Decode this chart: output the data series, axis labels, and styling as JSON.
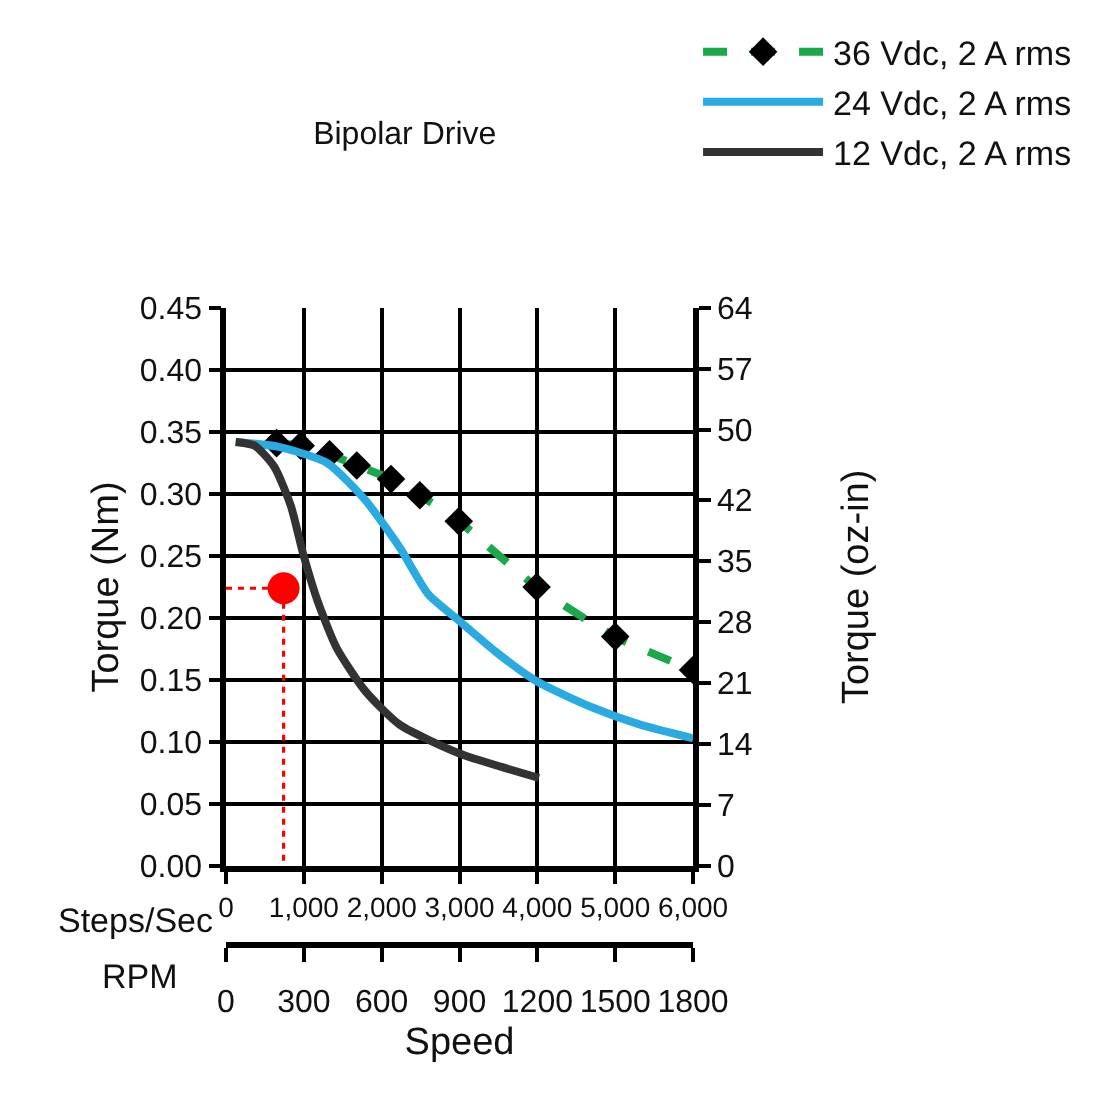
{
  "chart_data": {
    "type": "line",
    "title": "Bipolar Drive",
    "xlabel": "Speed",
    "ylabel": "Torque (Nm)",
    "y2label": "Torque (oz-in)",
    "annotations": [
      "Steps/Sec",
      "RPM"
    ],
    "xlim": [
      0,
      6000
    ],
    "xticks": [
      0,
      {
        "value": 1000,
        "label": "1,000"
      },
      {
        "value": 2000,
        "label": "2,000"
      },
      {
        "value": 3000,
        "label": "3,000"
      },
      {
        "value": 4000,
        "label": "4,000"
      },
      {
        "value": 5000,
        "label": "5,000"
      },
      {
        "value": 6000,
        "label": "6,000"
      }
    ],
    "x2lim": [
      0,
      1800
    ],
    "x2ticks": [
      0,
      300,
      600,
      900,
      1200,
      1500,
      1800
    ],
    "ylim": [
      0,
      0.45
    ],
    "yticks": [
      {
        "value": 0,
        "label": "0.00"
      },
      0.05,
      {
        "value": 0.1,
        "label": "0.10"
      },
      0.15,
      {
        "value": 0.2,
        "label": "0.20"
      },
      0.25,
      {
        "value": 0.3,
        "label": "0.30"
      },
      0.35,
      {
        "value": 0.4,
        "label": "0.40"
      },
      0.45
    ],
    "y2lim": [
      0,
      64
    ],
    "y2ticks": [
      0,
      7,
      14,
      21,
      28,
      35,
      42,
      50,
      57,
      64
    ],
    "grid": true,
    "legend": "top right",
    "series": [
      {
        "name": "36 Vdc, 2 A rms",
        "color": "#1aa84a",
        "marker": "diamond",
        "line_style": "dashed",
        "x": [
          650,
          960,
          1330,
          1680,
          2120,
          2490,
          2990,
          3990,
          5000,
          6000
        ],
        "values": [
          0.341,
          0.339,
          0.332,
          0.323,
          0.312,
          0.299,
          0.278,
          0.225,
          0.185,
          0.158
        ]
      },
      {
        "name": "24 Vdc, 2 A rms",
        "color": "#29abe2",
        "marker": "none",
        "line_style": "solid",
        "x": [
          124,
          680,
          1300,
          1790,
          2230,
          2600,
          2990,
          3460,
          3990,
          4700,
          5320,
          6000
        ],
        "values": [
          0.342,
          0.338,
          0.325,
          0.295,
          0.257,
          0.219,
          0.198,
          0.173,
          0.149,
          0.128,
          0.114,
          0.103
        ]
      },
      {
        "name": "12 Vdc, 2 A rms",
        "color": "#333333",
        "marker": "none",
        "line_style": "solid",
        "x": [
          124,
          370,
          620,
          835,
          990,
          1175,
          1420,
          1790,
          2230,
          2990,
          4020
        ],
        "values": [
          0.342,
          0.339,
          0.322,
          0.29,
          0.252,
          0.214,
          0.176,
          0.141,
          0.114,
          0.091,
          0.071
        ]
      },
      {
        "type": "line",
        "color": "#ff0000",
        "marker": "none",
        "line_style": "dotted",
        "x": [
          0,
          740,
          740
        ],
        "values": [
          0.224,
          0.224,
          0
        ]
      },
      {
        "type": "scatter",
        "color": "#ff0000",
        "marker": "circle",
        "x": [
          740
        ],
        "values": [
          0.224
        ]
      }
    ]
  }
}
